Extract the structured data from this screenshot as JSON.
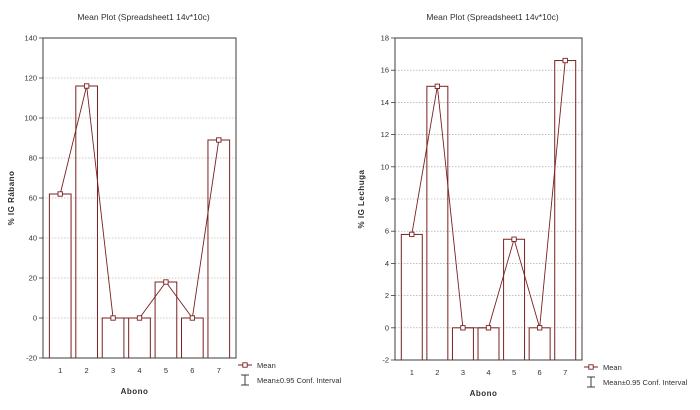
{
  "colors": {
    "frame": "#3c3c3c",
    "bar": "#7a2020",
    "grid": "#9a9a9a",
    "line": "#7a2020",
    "background": "#ffffff"
  },
  "charts": [
    {
      "title": "Mean Plot (Spreadsheet1 14v*10c)",
      "legend": {
        "mean_label": "Mean",
        "ci_label": "Mean±0.95 Conf. Interval"
      },
      "chart_data": {
        "type": "bar",
        "title": "Mean Plot (Spreadsheet1 14v*10c)",
        "xlabel": "Abono",
        "ylabel": "% IG Rábano",
        "categories": [
          "1",
          "2",
          "3",
          "4",
          "5",
          "6",
          "7"
        ],
        "values": [
          62,
          116,
          0,
          0,
          18,
          0,
          89
        ],
        "ylim": [
          -20,
          140
        ],
        "yticks": [
          -20,
          0,
          20,
          40,
          60,
          80,
          100,
          120,
          140
        ],
        "ytick_labels": [
          "-20",
          "0",
          "20",
          "40",
          "60",
          "80",
          "100",
          "120",
          "140"
        ],
        "grid": true,
        "legend_position": "bottom-right"
      }
    },
    {
      "title": "Mean Plot (Spreadsheet1 14v*10c)",
      "legend": {
        "mean_label": "Mean",
        "ci_label": "Mean±0.95 Conf. Interval"
      },
      "chart_data": {
        "type": "bar",
        "title": "Mean Plot (Spreadsheet1 14v*10c)",
        "xlabel": "Abono",
        "ylabel": "% IG Lechuga",
        "categories": [
          "1",
          "2",
          "3",
          "4",
          "5",
          "6",
          "7"
        ],
        "values": [
          5.8,
          15,
          0,
          0,
          5.5,
          0,
          16.6
        ],
        "ylim": [
          -2,
          18
        ],
        "yticks": [
          -2,
          0,
          2,
          4,
          6,
          8,
          10,
          12,
          14,
          16,
          18
        ],
        "ytick_labels": [
          "-2",
          "0",
          "2",
          "4",
          "6",
          "8",
          "10",
          "12",
          "14",
          "16",
          "18"
        ],
        "grid": true,
        "legend_position": "bottom-right"
      }
    }
  ]
}
